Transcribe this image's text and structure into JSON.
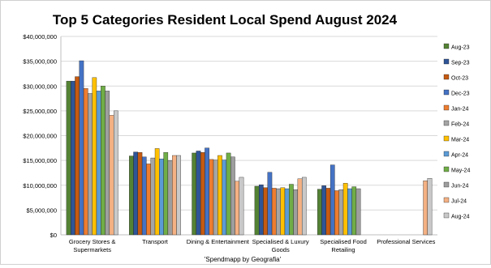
{
  "chart_data": {
    "type": "bar",
    "title": "Top 5 Categories Resident Local Spend August 2024",
    "xlabel": "'Spendmapp by Geografia'",
    "ylabel": "",
    "ylim": [
      0,
      40000000
    ],
    "yticks": [
      0,
      5000000,
      10000000,
      15000000,
      20000000,
      25000000,
      30000000,
      35000000,
      40000000
    ],
    "ytick_labels": [
      "$0",
      "$5,000,000",
      "$10,000,000",
      "$15,000,000",
      "$20,000,000",
      "$25,000,000",
      "$30,000,000",
      "$35,000,000",
      "$40,000,000"
    ],
    "grid": true,
    "legend_position": "right",
    "categories": [
      [
        "Grocery Stores &",
        "Supermarkets"
      ],
      [
        "Transport"
      ],
      [
        "Dining & Entertainment"
      ],
      [
        "Specialised & Luxury",
        "Goods"
      ],
      [
        "Specialised Food",
        "Retailing"
      ],
      [
        "Professional Services"
      ]
    ],
    "series": [
      {
        "name": "Aug-23",
        "color": "#548235",
        "values": [
          31000000,
          15900000,
          16500000,
          9800000,
          9200000,
          0
        ]
      },
      {
        "name": "Sep-23",
        "color": "#2F5597",
        "values": [
          31000000,
          16700000,
          16900000,
          10100000,
          9900000,
          0
        ]
      },
      {
        "name": "Oct-23",
        "color": "#C55A11",
        "values": [
          31900000,
          16600000,
          16600000,
          9500000,
          9400000,
          0
        ]
      },
      {
        "name": "Dec-23",
        "color": "#4472C4",
        "values": [
          35100000,
          15700000,
          17500000,
          12600000,
          14100000,
          0
        ]
      },
      {
        "name": "Jan-24",
        "color": "#ED7D31",
        "values": [
          29500000,
          14300000,
          15200000,
          9400000,
          8900000,
          0
        ]
      },
      {
        "name": "Feb-24",
        "color": "#A5A5A5",
        "values": [
          28500000,
          15500000,
          15100000,
          9300000,
          9100000,
          0
        ]
      },
      {
        "name": "Mar-24",
        "color": "#FFC000",
        "values": [
          31700000,
          17400000,
          16000000,
          9500000,
          10400000,
          0
        ]
      },
      {
        "name": "Apr-24",
        "color": "#5B9BD5",
        "values": [
          29000000,
          15300000,
          15100000,
          9300000,
          9300000,
          0
        ]
      },
      {
        "name": "May-24",
        "color": "#70AD47",
        "values": [
          30000000,
          16600000,
          16500000,
          10200000,
          9700000,
          0
        ]
      },
      {
        "name": "Jun-24",
        "color": "#9E9E9E",
        "values": [
          29000000,
          15000000,
          15700000,
          9100000,
          9300000,
          0
        ]
      },
      {
        "name": "Jul-24",
        "color": "#F4B183",
        "values": [
          24100000,
          16000000,
          10800000,
          11300000,
          0,
          10900000
        ]
      },
      {
        "name": "Aug-24",
        "color": "#C9C9C9",
        "values": [
          25000000,
          16000000,
          11600000,
          11600000,
          0,
          11400000
        ]
      }
    ]
  }
}
